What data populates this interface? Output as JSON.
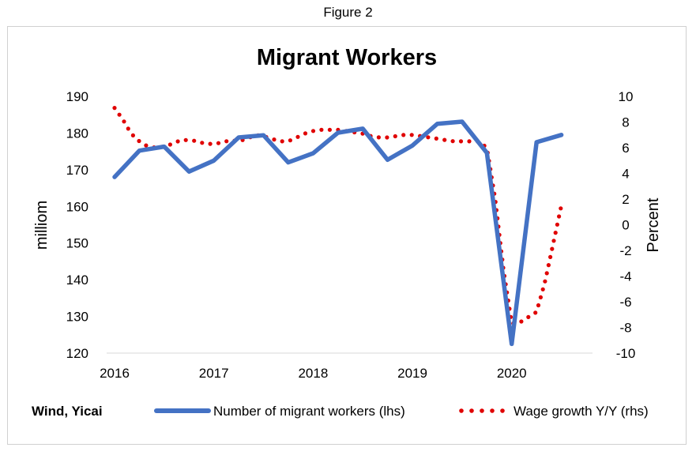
{
  "figure_caption": "Figure 2",
  "source": "Wind, Yicai",
  "colors": {
    "workers": "#4472C4",
    "wages": "#E00000"
  },
  "chart_data": {
    "type": "line",
    "title": "Migrant Workers",
    "y_left_label": "milliom",
    "y_right_label": "Percent",
    "y_left_range": [
      120,
      190
    ],
    "y_right_range": [
      -10,
      10
    ],
    "y_left_ticks": [
      120,
      130,
      140,
      150,
      160,
      170,
      180,
      190
    ],
    "y_right_ticks": [
      -10,
      -8,
      -6,
      -4,
      -2,
      0,
      2,
      4,
      6,
      8,
      10
    ],
    "x_ticks": [
      "2016",
      "2017",
      "2018",
      "2019",
      "2020"
    ],
    "x_range": [
      2016,
      2020.75
    ],
    "grid": false,
    "legend_position": "bottom",
    "series": [
      {
        "name": "Number of migrant workers (lhs)",
        "axis": "left",
        "style": "solid",
        "x": [
          2016,
          2016.25,
          2016.5,
          2016.75,
          2017,
          2017.25,
          2017.5,
          2017.75,
          2018,
          2018.25,
          2018.5,
          2018.75,
          2019,
          2019.25,
          2019.5,
          2019.75,
          2020,
          2020.25,
          2020.5
        ],
        "values": [
          168,
          175.2,
          176.3,
          169.5,
          172.5,
          178.8,
          179.4,
          172,
          174.5,
          180.1,
          181.2,
          172.7,
          176.6,
          182.5,
          183.1,
          174.6,
          122.5,
          177.5,
          179.5
        ]
      },
      {
        "name": "Wage growth Y/Y (rhs)",
        "axis": "right",
        "style": "dotted",
        "x": [
          2016,
          2016.0833,
          2016.1667,
          2016.25,
          2016.3333,
          2016.4167,
          2016.5,
          2016.5833,
          2016.6667,
          2016.75,
          2016.8333,
          2016.9167,
          2017,
          2017.0833,
          2017.1667,
          2017.25,
          2017.3333,
          2017.4167,
          2017.5,
          2017.5833,
          2017.6667,
          2017.75,
          2017.8333,
          2017.9167,
          2018,
          2018.0833,
          2018.1667,
          2018.25,
          2018.3333,
          2018.4167,
          2018.5,
          2018.5833,
          2018.6667,
          2018.75,
          2018.8333,
          2018.9167,
          2019,
          2019.0833,
          2019.1667,
          2019.25,
          2019.3333,
          2019.4167,
          2019.5,
          2019.5833,
          2019.6667,
          2019.75,
          2019.8333,
          2019.9167,
          2020,
          2020.0833,
          2020.1667,
          2020.25,
          2020.3333,
          2020.4167,
          2020.5
        ],
        "values": [
          9.1,
          8.2,
          7.1,
          6.5,
          6.1,
          6.0,
          6.1,
          6.3,
          6.6,
          6.6,
          6.5,
          6.3,
          6.3,
          6.4,
          6.6,
          6.5,
          6.7,
          7.0,
          6.9,
          6.7,
          6.5,
          6.5,
          6.8,
          7.1,
          7.3,
          7.4,
          7.4,
          7.4,
          7.3,
          7.2,
          7.1,
          6.9,
          6.8,
          6.8,
          6.9,
          7.0,
          7.0,
          6.9,
          6.8,
          6.7,
          6.6,
          6.5,
          6.5,
          6.5,
          6.5,
          6.0,
          2.0,
          -3.5,
          -7.7,
          -7.6,
          -7.2,
          -6.8,
          -4.5,
          -1.5,
          1.5
        ]
      }
    ]
  }
}
